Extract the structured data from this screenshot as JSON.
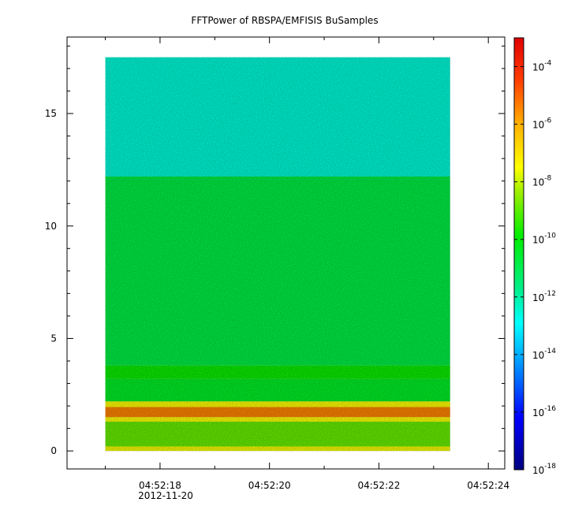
{
  "chart_data": {
    "type": "heatmap",
    "title": "FFTPower of RBSPA/EMFISIS  BuSamples",
    "xlabel": "",
    "ylabel": "",
    "x_tick_labels": [
      "04:52:18",
      "04:52:20",
      "04:52:22",
      "04:52:24"
    ],
    "x_tick_values_sec": [
      18,
      20,
      22,
      24
    ],
    "x_date_label": "2012-11-20",
    "xlim_sec": [
      16.3,
      24.3
    ],
    "data_x_range_sec": [
      17.0,
      23.3
    ],
    "y_tick_labels": [
      "0",
      "5",
      "10",
      "15"
    ],
    "y_tick_values": [
      0,
      5,
      10,
      15
    ],
    "ylim": [
      -0.8,
      18.4
    ],
    "data_y_range": [
      0,
      17.5
    ],
    "colorbar": {
      "scale": "log",
      "range": [
        1e-18,
        0.001
      ],
      "tick_mantissa": [
        "10",
        "10",
        "10",
        "10",
        "10",
        "10",
        "10",
        "10"
      ],
      "tick_exponents": [
        "-4",
        "-6",
        "-8",
        "-10",
        "-12",
        "-14",
        "-16",
        "-18"
      ],
      "tick_log_values": [
        -4,
        -6,
        -8,
        -10,
        -12,
        -14,
        -16,
        -18
      ]
    },
    "bands": [
      {
        "y0": 12.2,
        "y1": 17.5,
        "log_power": -12.5
      },
      {
        "y0": 3.8,
        "y1": 12.2,
        "log_power": -10.8
      },
      {
        "y0": 3.2,
        "y1": 3.8,
        "log_power": -9.8
      },
      {
        "y0": 2.2,
        "y1": 3.2,
        "log_power": -10.4
      },
      {
        "y0": 1.95,
        "y1": 2.2,
        "log_power": -7.5
      },
      {
        "y0": 1.5,
        "y1": 1.95,
        "log_power": -5.4
      },
      {
        "y0": 1.3,
        "y1": 1.5,
        "log_power": -7.5
      },
      {
        "y0": 0.2,
        "y1": 1.3,
        "log_power": -8.9
      },
      {
        "y0": 0.0,
        "y1": 0.2,
        "log_power": -7.6
      }
    ]
  }
}
